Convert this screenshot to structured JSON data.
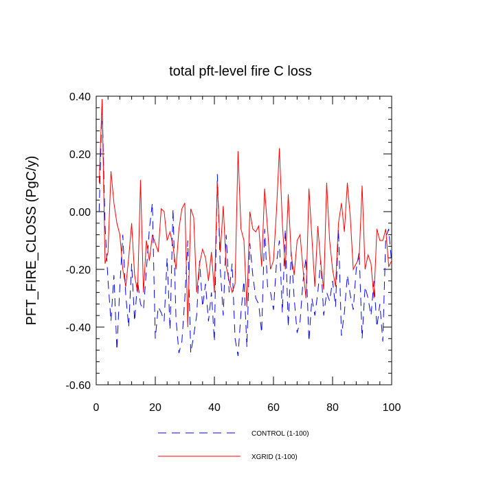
{
  "chart_data": {
    "type": "line",
    "title": "total pft-level fire C loss",
    "ylabel": "PFT_FIRE_CLOSS  (PgC/y)",
    "xlabel": "",
    "xlim": [
      0,
      100
    ],
    "ylim": [
      -0.6,
      0.4
    ],
    "x_ticks": [
      0,
      20,
      40,
      60,
      80,
      100
    ],
    "x_tick_labels": [
      "0",
      "20",
      "40",
      "60",
      "80",
      "100"
    ],
    "y_ticks": [
      0.4,
      0.2,
      0.0,
      -0.2,
      -0.4,
      -0.6
    ],
    "y_tick_labels": [
      "0.40",
      "0.20",
      "0.00",
      "-0.20",
      "-0.40",
      "-0.60"
    ],
    "grid": false,
    "legend_position": "bottom-center",
    "x": [
      1,
      2,
      3,
      4,
      5,
      6,
      7,
      8,
      9,
      10,
      11,
      12,
      13,
      14,
      15,
      16,
      17,
      18,
      19,
      20,
      21,
      22,
      23,
      24,
      25,
      26,
      27,
      28,
      29,
      30,
      31,
      32,
      33,
      34,
      35,
      36,
      37,
      38,
      39,
      40,
      41,
      42,
      43,
      44,
      45,
      46,
      47,
      48,
      49,
      50,
      51,
      52,
      53,
      54,
      55,
      56,
      57,
      58,
      59,
      60,
      61,
      62,
      63,
      64,
      65,
      66,
      67,
      68,
      69,
      70,
      71,
      72,
      73,
      74,
      75,
      76,
      77,
      78,
      79,
      80,
      81,
      82,
      83,
      84,
      85,
      86,
      87,
      88,
      89,
      90,
      91,
      92,
      93,
      94,
      95,
      96,
      97,
      98,
      99,
      100
    ],
    "series": [
      {
        "name": "CONTROL (1-100)",
        "color": "#0000ff",
        "dash": "dashed",
        "values": [
          0.0,
          0.38,
          -0.05,
          -0.24,
          -0.38,
          -0.22,
          -0.48,
          -0.26,
          -0.08,
          -0.29,
          -0.4,
          -0.18,
          -0.38,
          -0.24,
          -0.32,
          -0.34,
          -0.2,
          -0.06,
          0.03,
          -0.44,
          -0.33,
          -0.35,
          -0.38,
          -0.16,
          -0.41,
          0.01,
          -0.37,
          -0.49,
          -0.45,
          -0.3,
          -0.1,
          -0.49,
          -0.43,
          -0.36,
          -0.17,
          -0.33,
          -0.25,
          -0.38,
          -0.28,
          -0.45,
          0.13,
          -0.2,
          -0.36,
          -0.08,
          -0.28,
          -0.18,
          -0.44,
          -0.5,
          -0.35,
          -0.24,
          -0.47,
          -0.11,
          -0.22,
          -0.3,
          -0.32,
          -0.42,
          -0.06,
          -0.26,
          -0.28,
          -0.34,
          -0.18,
          -0.1,
          -0.35,
          -0.06,
          -0.4,
          -0.14,
          -0.3,
          -0.42,
          -0.38,
          -0.24,
          -0.16,
          -0.45,
          -0.3,
          -0.36,
          -0.28,
          -0.17,
          -0.36,
          -0.28,
          -0.31,
          -0.24,
          -0.33,
          -0.06,
          -0.43,
          -0.35,
          -0.22,
          -0.29,
          -0.34,
          -0.2,
          -0.14,
          -0.44,
          -0.26,
          -0.3,
          -0.36,
          -0.24,
          -0.4,
          -0.32,
          -0.45,
          -0.09,
          -0.06,
          -0.18
        ]
      },
      {
        "name": "XGRID (1-100)",
        "color": "#ff0000",
        "dash": "solid",
        "values": [
          0.1,
          0.39,
          -0.18,
          -0.14,
          0.14,
          0.03,
          -0.04,
          -0.08,
          -0.2,
          -0.26,
          -0.16,
          -0.04,
          -0.22,
          -0.28,
          0.11,
          -0.28,
          -0.1,
          -0.17,
          -0.08,
          -0.11,
          -0.14,
          0.01,
          0.0,
          -0.1,
          -0.07,
          -0.12,
          -0.2,
          -0.06,
          0.01,
          0.03,
          -0.4,
          0.01,
          -0.02,
          -0.28,
          -0.18,
          -0.13,
          -0.16,
          -0.24,
          -0.14,
          -0.28,
          0.1,
          -0.14,
          0.02,
          -0.19,
          -0.24,
          -0.28,
          -0.25,
          0.21,
          -0.06,
          -0.1,
          -0.33,
          0.0,
          -0.06,
          -0.07,
          -0.05,
          -0.19,
          0.08,
          -0.06,
          -0.2,
          -0.17,
          0.0,
          0.22,
          -0.04,
          -0.2,
          0.06,
          -0.15,
          -0.22,
          -0.1,
          -0.08,
          -0.2,
          -0.3,
          0.08,
          -0.09,
          -0.26,
          -0.05,
          -0.18,
          -0.27,
          0.1,
          -0.1,
          -0.2,
          -0.26,
          -0.04,
          0.03,
          -0.07,
          0.1,
          -0.02,
          -0.2,
          -0.18,
          -0.16,
          0.09,
          -0.2,
          -0.15,
          -0.18,
          -0.3,
          -0.06,
          -0.1,
          -0.1,
          -0.06,
          -0.19,
          -0.17
        ]
      }
    ]
  }
}
